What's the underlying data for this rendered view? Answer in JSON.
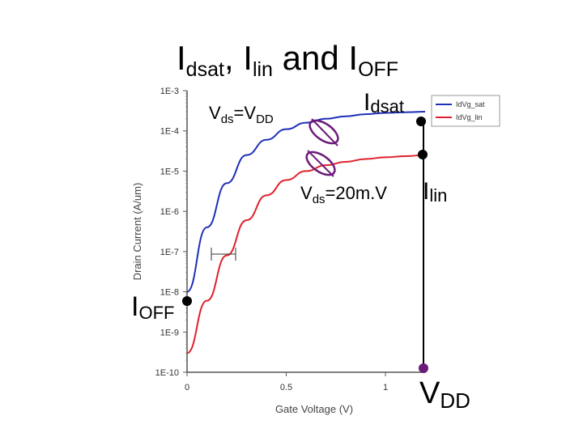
{
  "slide": {
    "title_parts": [
      {
        "text": "I",
        "sub": false
      },
      {
        "text": "dsat",
        "sub": true
      },
      {
        "text": ", I",
        "sub": false
      },
      {
        "text": "lin",
        "sub": true
      },
      {
        "text": " and I",
        "sub": false
      },
      {
        "text": "OFF",
        "sub": true
      }
    ],
    "annotations": {
      "vds_vdd": {
        "main": "V",
        "sub1": "ds",
        "eq": "=V",
        "sub2": "DD"
      },
      "vds_20mv": {
        "main": "V",
        "sub1": "ds",
        "eq": "=20m.V"
      },
      "idsat": {
        "main": "I",
        "sub": "dsat"
      },
      "ilin": {
        "main": "I",
        "sub": "lin"
      },
      "ioff": {
        "main": "I",
        "sub": "OFF"
      },
      "vdd": {
        "main": "V",
        "sub": "DD"
      }
    },
    "colors": {
      "black_dot": "#000000",
      "purple": "#6b1a7a",
      "sat": "#1f2fb8",
      "lin": "#e0202a"
    }
  },
  "chart_data": {
    "type": "line",
    "xlabel": "Gate Voltage (V)",
    "ylabel": "Drain Current (A/um)",
    "x_ticks": [
      "0",
      "0.5",
      "1"
    ],
    "y_ticks": [
      "1E-3",
      "1E-4",
      "1E-5",
      "1E-6",
      "1E-7",
      "1E-8",
      "1E-9",
      "1E-10"
    ],
    "xlim": [
      0,
      1.2
    ],
    "ylim_log10": [
      -10,
      -3
    ],
    "y_scale": "log",
    "legend": {
      "position": "top-right",
      "entries": [
        "IdVg_sat",
        "IdVg_lin"
      ]
    },
    "series": [
      {
        "name": "IdVg_sat",
        "color": "#1f2fb8",
        "x": [
          0,
          0.1,
          0.2,
          0.3,
          0.4,
          0.5,
          0.6,
          0.7,
          0.8,
          0.9,
          1.0,
          1.1,
          1.2
        ],
        "y": [
          1e-08,
          4e-07,
          5e-06,
          2.5e-05,
          6e-05,
          0.00011,
          0.00016,
          0.0002,
          0.00023,
          0.00026,
          0.00028,
          0.00029,
          0.0003
        ]
      },
      {
        "name": "IdVg_lin",
        "color": "#e0202a",
        "x": [
          0,
          0.1,
          0.2,
          0.3,
          0.4,
          0.5,
          0.6,
          0.7,
          0.8,
          0.9,
          1.0,
          1.1,
          1.2
        ],
        "y": [
          3e-10,
          6e-09,
          8e-08,
          6e-07,
          2.5e-06,
          6e-06,
          1e-05,
          1.4e-05,
          1.7e-05,
          2e-05,
          2.2e-05,
          2.35e-05,
          2.5e-05
        ]
      }
    ]
  }
}
